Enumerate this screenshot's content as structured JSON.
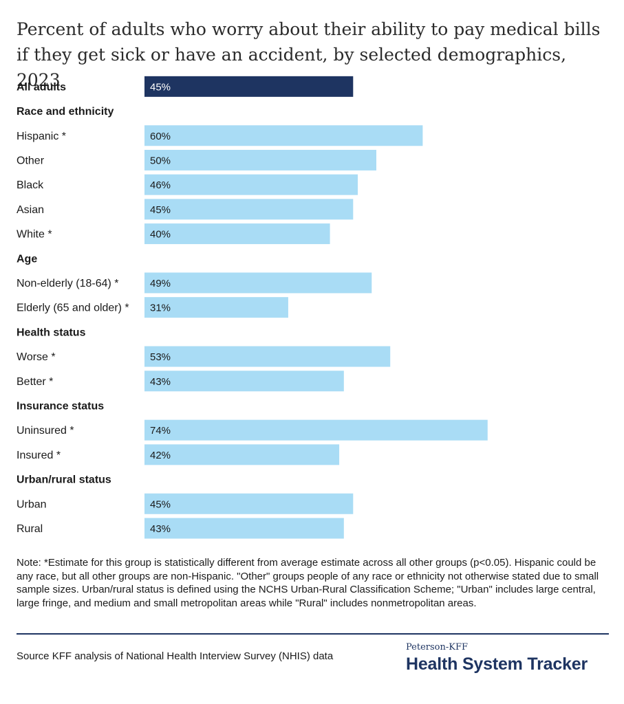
{
  "title": "Percent of adults who worry about their ability to pay medical bills if they get sick or have an accident, by selected demographics, 2023",
  "colors": {
    "highlight": "#1e3461",
    "bar": "#a9dcf5",
    "brand": "#1e3461"
  },
  "chart_data": {
    "type": "bar",
    "orientation": "horizontal",
    "title": "Percent of adults who worry about their ability to pay medical bills if they get sick or have an accident, by selected demographics, 2023",
    "value_format": "percent",
    "rows": [
      {
        "kind": "bar",
        "label": "All adults",
        "value": 45,
        "display": "45%",
        "highlight": true,
        "bold_label": true
      },
      {
        "kind": "header",
        "label": "Race and ethnicity"
      },
      {
        "kind": "bar",
        "label": "Hispanic *",
        "value": 60,
        "display": "60%"
      },
      {
        "kind": "bar",
        "label": "Other",
        "value": 50,
        "display": "50%"
      },
      {
        "kind": "bar",
        "label": "Black",
        "value": 46,
        "display": "46%"
      },
      {
        "kind": "bar",
        "label": "Asian",
        "value": 45,
        "display": "45%"
      },
      {
        "kind": "bar",
        "label": "White *",
        "value": 40,
        "display": "40%"
      },
      {
        "kind": "header",
        "label": "Age"
      },
      {
        "kind": "bar",
        "label": "Non-elderly (18-64) *",
        "value": 49,
        "display": "49%"
      },
      {
        "kind": "bar",
        "label": "Elderly (65 and older) *",
        "value": 31,
        "display": "31%"
      },
      {
        "kind": "header",
        "label": "Health status"
      },
      {
        "kind": "bar",
        "label": "Worse *",
        "value": 53,
        "display": "53%"
      },
      {
        "kind": "bar",
        "label": "Better *",
        "value": 43,
        "display": "43%"
      },
      {
        "kind": "header",
        "label": "Insurance status"
      },
      {
        "kind": "bar",
        "label": "Uninsured *",
        "value": 74,
        "display": "74%"
      },
      {
        "kind": "bar",
        "label": "Insured *",
        "value": 42,
        "display": "42%"
      },
      {
        "kind": "header",
        "label": "Urban/rural status"
      },
      {
        "kind": "bar",
        "label": "Urban",
        "value": 45,
        "display": "45%"
      },
      {
        "kind": "bar",
        "label": "Rural",
        "value": 43,
        "display": "43%"
      }
    ]
  },
  "note": "Note: *Estimate for this group is statistically different from average estimate across all other groups (p<0.05). Hispanic could be any race, but all other groups are non-Hispanic. \"Other\" groups people of any race or ethnicity not otherwise stated due to small sample sizes. Urban/rural status is defined using the NCHS Urban-Rural Classification Scheme; \"Urban\" includes large central, large fringe, and medium and small metropolitan areas while \"Rural\" includes nonmetropolitan areas.",
  "source": "Source KFF analysis of National Health Interview Survey (NHIS) data",
  "brand": {
    "small": "Peterson-KFF",
    "big": "Health System Tracker"
  }
}
